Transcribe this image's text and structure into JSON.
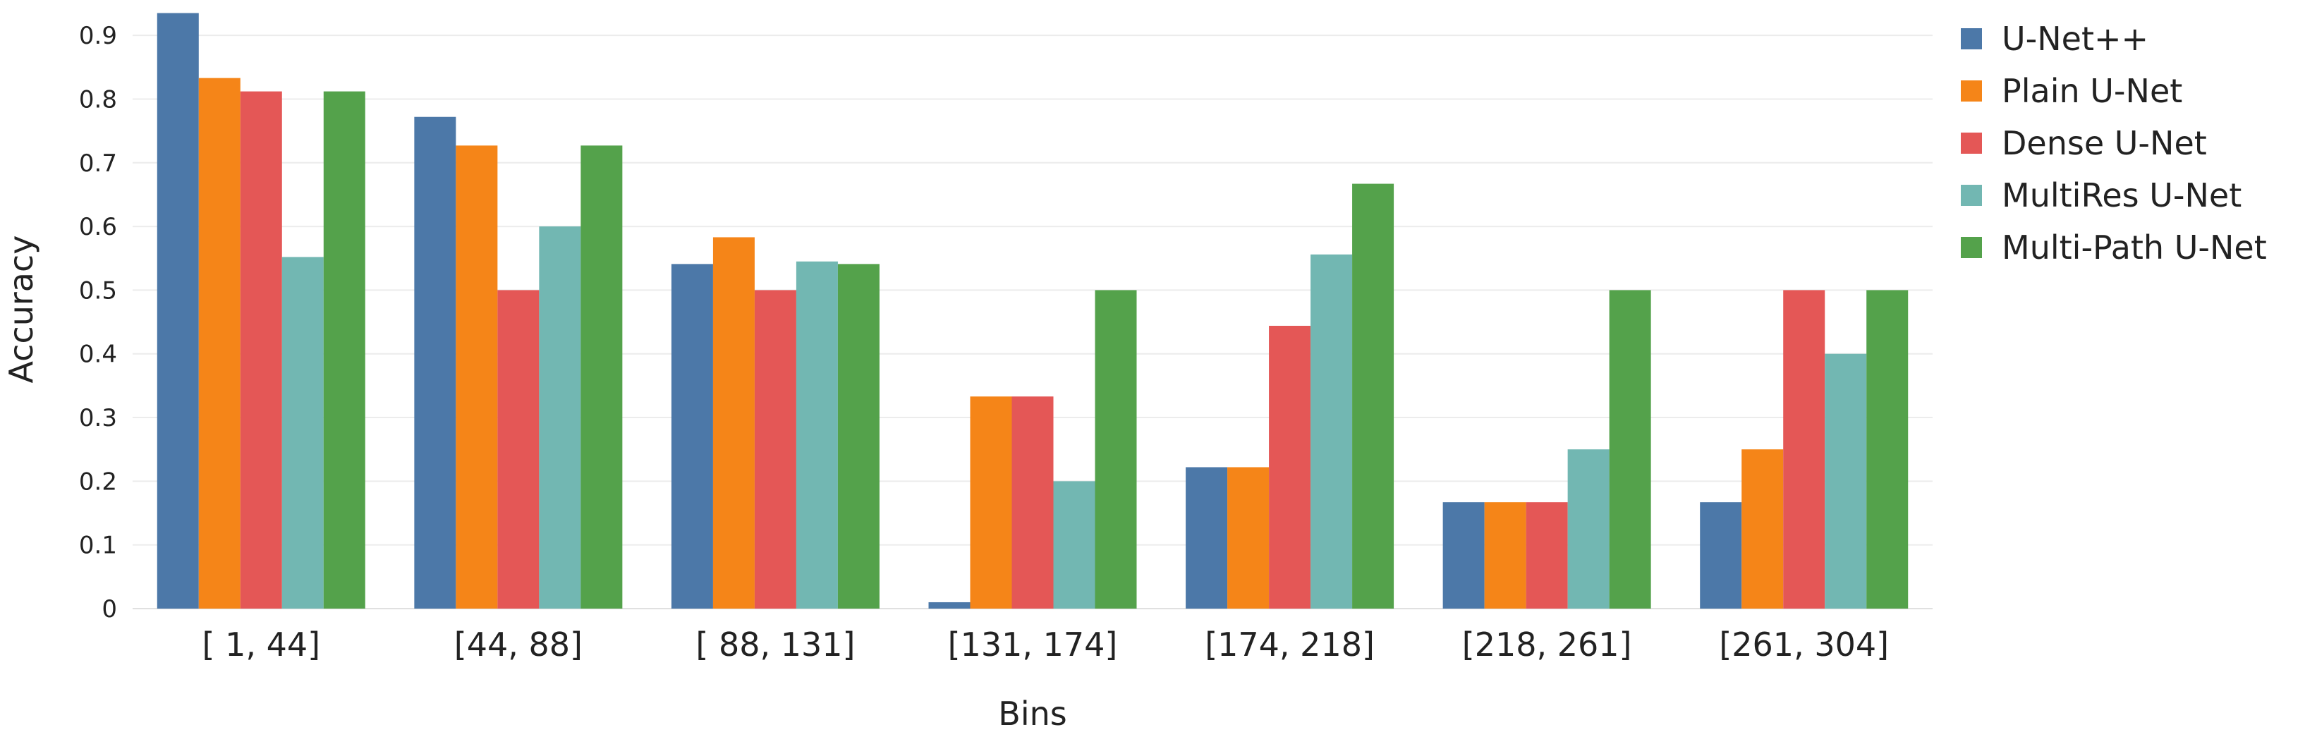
{
  "chart_data": {
    "type": "bar",
    "xlabel": "Bins",
    "ylabel": "Accuracy",
    "ylim": [
      0,
      0.94
    ],
    "yticks": [
      0,
      0.1,
      0.2,
      0.3,
      0.4,
      0.5,
      0.6,
      0.7,
      0.8,
      0.9
    ],
    "ytick_labels": [
      "0",
      "0.1",
      "0.2",
      "0.3",
      "0.4",
      "0.5",
      "0.6",
      "0.7",
      "0.8",
      "0.9"
    ],
    "grid": true,
    "legend_position": "top-right",
    "categories": [
      "[ 1, 44]",
      "[44, 88]",
      "[ 88, 131]",
      "[131, 174]",
      "[174, 218]",
      "[218, 261]",
      "[261, 304]"
    ],
    "series": [
      {
        "name": "U-Net++",
        "color": "#4c78a8",
        "values": [
          0.935,
          0.772,
          0.541,
          0.01,
          0.222,
          0.167,
          0.167
        ]
      },
      {
        "name": "Plain U-Net",
        "color": "#f58518",
        "values": [
          0.833,
          0.727,
          0.583,
          0.333,
          0.222,
          0.167,
          0.25
        ]
      },
      {
        "name": "Dense U-Net",
        "color": "#e45756",
        "values": [
          0.812,
          0.5,
          0.5,
          0.333,
          0.444,
          0.167,
          0.5
        ]
      },
      {
        "name": "MultiRes U-Net",
        "color": "#72b7b2",
        "values": [
          0.552,
          0.6,
          0.545,
          0.2,
          0.556,
          0.25,
          0.4
        ]
      },
      {
        "name": "Multi-Path U-Net",
        "color": "#54a24b",
        "values": [
          0.812,
          0.727,
          0.541,
          0.5,
          0.667,
          0.5,
          0.5
        ]
      }
    ]
  }
}
